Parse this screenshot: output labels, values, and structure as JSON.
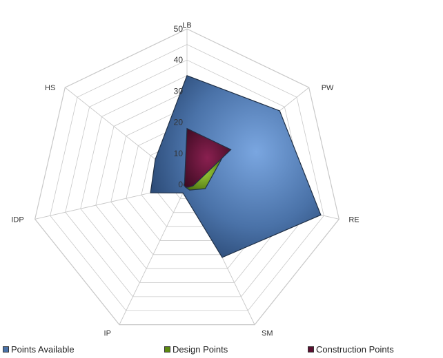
{
  "chart_data": {
    "type": "radar",
    "categories": [
      "LB",
      "PW",
      "RE",
      "SM",
      "IP",
      "IDP",
      "HS"
    ],
    "ylim": [
      0,
      50
    ],
    "ticks": [
      "0",
      "10",
      "20",
      "30",
      "40",
      "50"
    ],
    "grid": true,
    "legend_position": "bottom",
    "series": [
      {
        "name": "Points Available",
        "values": [
          35,
          38,
          44,
          26,
          3,
          12,
          13
        ],
        "color": "#4a72a8"
      },
      {
        "name": "Design Points",
        "values": [
          10,
          15,
          6,
          2,
          1,
          1,
          1
        ],
        "color": "#5c8a10"
      },
      {
        "name": "Construction Points",
        "values": [
          18,
          18,
          2,
          1,
          1,
          1,
          1
        ],
        "color": "#5a1030"
      }
    ]
  },
  "legend": {
    "items": [
      {
        "label": "Points Available",
        "color": "#4a72a8"
      },
      {
        "label": "Design Points",
        "color": "#5c8a10"
      },
      {
        "label": "Construction Points",
        "color": "#5a1030"
      }
    ]
  }
}
